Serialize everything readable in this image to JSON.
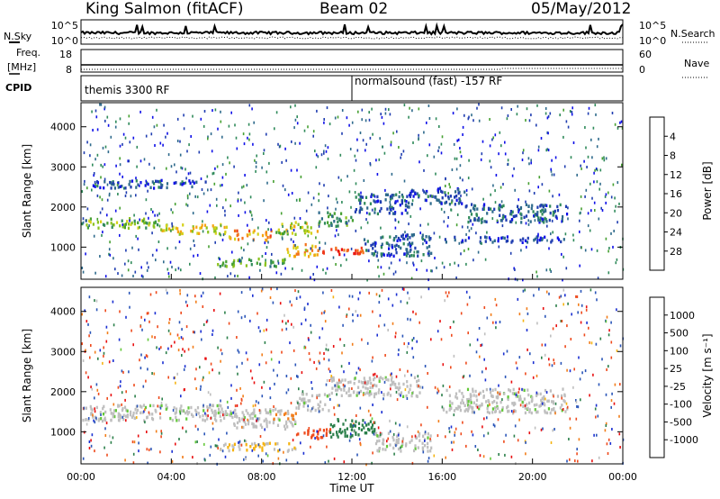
{
  "header": {
    "station": "King Salmon (fitACF)",
    "beam": "Beam 02",
    "date": "05/May/2012"
  },
  "top_panels": {
    "nsky_label": "N.Sky",
    "nsky_ticks": [
      "10^5",
      "10^0"
    ],
    "nsearch_label": "N.Search",
    "nsearch_ticks": [
      "10^5",
      "10^0"
    ],
    "freq_label_1": "Freq.",
    "freq_label_2": "[MHz]",
    "freq_ticks": [
      "18",
      "8"
    ],
    "nave_label": "Nave",
    "nave_ticks": [
      "60",
      "0"
    ],
    "cpid_label": "CPID",
    "cpid_segments": [
      {
        "start_hour": 0,
        "end_hour": 12,
        "label": "themis 3300 RF"
      },
      {
        "start_hour": 12,
        "end_hour": 24,
        "label": "normalsound (fast) -157 RF"
      }
    ]
  },
  "chart_data": [
    {
      "type": "heatmap",
      "name": "power",
      "xlabel": "Time UT",
      "ylabel": "Slant Range [km]",
      "xlim": [
        0,
        24
      ],
      "ylim": [
        200,
        4600
      ],
      "x_ticks": [
        "00:00",
        "04:00",
        "08:00",
        "12:00",
        "16:00",
        "20:00",
        "00:00"
      ],
      "y_ticks": [
        1000,
        2000,
        3000,
        4000
      ],
      "colorbar": {
        "label": "Power [dB]",
        "ticks": [
          "4",
          "8",
          "12",
          "16",
          "20",
          "24",
          "28"
        ],
        "range": [
          0,
          30
        ],
        "colors": [
          "#0f10e8",
          "#1f3db0",
          "#2e6a8c",
          "#2f8a5a",
          "#46a032",
          "#8bc21f",
          "#d5d11a",
          "#f5a312",
          "#f2701a",
          "#ee3a1c",
          "#e80f10"
        ]
      },
      "bands": [
        {
          "t0": 0.0,
          "t1": 3.5,
          "r0": 1500,
          "r1": 1750,
          "value": 14
        },
        {
          "t0": 3.5,
          "t1": 6.5,
          "r0": 1350,
          "r1": 1600,
          "value": 18
        },
        {
          "t0": 6.5,
          "t1": 8.5,
          "r0": 1200,
          "r1": 1450,
          "value": 22
        },
        {
          "t0": 8.5,
          "t1": 10.5,
          "r0": 1350,
          "r1": 1650,
          "value": 16
        },
        {
          "t0": 10.5,
          "t1": 12.0,
          "r0": 1550,
          "r1": 1900,
          "value": 10
        },
        {
          "t0": 12.0,
          "t1": 14.5,
          "r0": 1850,
          "r1": 2350,
          "value": 6
        },
        {
          "t0": 14.5,
          "t1": 17.0,
          "r0": 2100,
          "r1": 2500,
          "value": 5
        },
        {
          "t0": 17.0,
          "t1": 21.5,
          "r0": 1650,
          "r1": 2100,
          "value": 6
        },
        {
          "t0": 6.0,
          "t1": 9.0,
          "r0": 550,
          "r1": 750,
          "value": 12
        },
        {
          "t0": 9.0,
          "t1": 10.5,
          "r0": 800,
          "r1": 1100,
          "value": 20
        },
        {
          "t0": 10.5,
          "t1": 12.5,
          "r0": 850,
          "r1": 1050,
          "value": 26
        },
        {
          "t0": 12.5,
          "t1": 15.5,
          "r0": 800,
          "r1": 1350,
          "value": 6
        },
        {
          "t0": 16.0,
          "t1": 21.5,
          "r0": 1150,
          "r1": 1300,
          "value": 4
        },
        {
          "t0": 0.5,
          "t1": 5.5,
          "r0": 2500,
          "r1": 2700,
          "value": 5
        }
      ]
    },
    {
      "type": "heatmap",
      "name": "velocity",
      "xlabel": "Time UT",
      "ylabel": "Slant Range [km]",
      "xlim": [
        0,
        24
      ],
      "ylim": [
        200,
        4600
      ],
      "x_ticks": [
        "00:00",
        "04:00",
        "08:00",
        "12:00",
        "16:00",
        "20:00",
        "00:00"
      ],
      "y_ticks": [
        1000,
        2000,
        3000,
        4000
      ],
      "colorbar": {
        "label": "Velocity [m s⁻¹]",
        "ticks": [
          "1000",
          "500",
          "100",
          "25",
          "-25",
          "-100",
          "-500",
          "-1000"
        ],
        "colors": [
          "#1a2fd2",
          "#2a55b8",
          "#2b7f4a",
          "#63c83a",
          "#bfbfbf",
          "#bfbfbf",
          "#f5b312",
          "#f27d19",
          "#ee4a1c",
          "#e80f10"
        ]
      },
      "bands": [
        {
          "t0": 0.0,
          "t1": 6.5,
          "r0": 1300,
          "r1": 1700,
          "value": 0
        },
        {
          "t0": 6.5,
          "t1": 9.5,
          "r0": 1100,
          "r1": 1600,
          "value": 0
        },
        {
          "t0": 9.5,
          "t1": 11.0,
          "r0": 1550,
          "r1": 2000,
          "value": 0
        },
        {
          "t0": 11.0,
          "t1": 15.0,
          "r0": 1900,
          "r1": 2400,
          "value": 0
        },
        {
          "t0": 16.0,
          "t1": 21.5,
          "r0": 1500,
          "r1": 2100,
          "value": 0
        },
        {
          "t0": 6.0,
          "t1": 9.5,
          "r0": 550,
          "r1": 750,
          "value": -60
        },
        {
          "t0": 9.5,
          "t1": 11.0,
          "r0": 850,
          "r1": 1100,
          "value": -700
        },
        {
          "t0": 11.0,
          "t1": 13.0,
          "r0": 900,
          "r1": 1350,
          "value": 200
        },
        {
          "t0": 13.0,
          "t1": 15.5,
          "r0": 550,
          "r1": 1000,
          "value": 0
        },
        {
          "t0": 8.5,
          "t1": 9.5,
          "r0": 1350,
          "r1": 1500,
          "value": -150
        }
      ]
    }
  ]
}
